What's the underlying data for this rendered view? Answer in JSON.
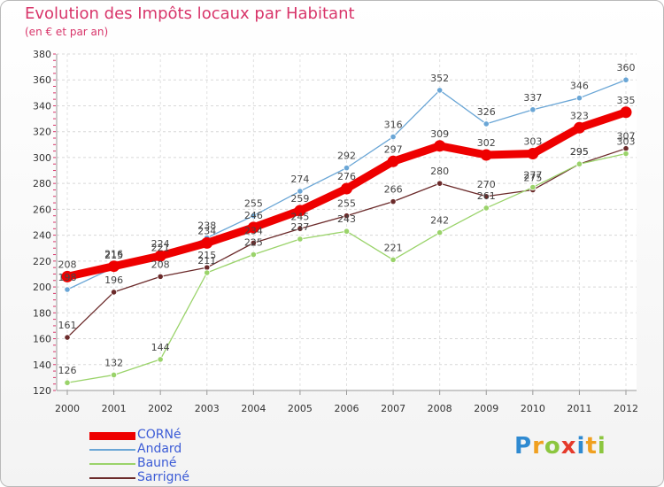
{
  "chart_data": {
    "type": "line",
    "title": "Evolution des Impôts locaux par Habitant",
    "subtitle": "(en € et par an)",
    "x": [
      "2000",
      "2001",
      "2002",
      "2003",
      "2004",
      "2005",
      "2006",
      "2007",
      "2008",
      "2009",
      "2010",
      "2011",
      "2012"
    ],
    "ylim": [
      120,
      380
    ],
    "yticks": [
      120,
      140,
      160,
      180,
      200,
      220,
      240,
      260,
      280,
      300,
      320,
      340,
      360,
      380
    ],
    "grid": true,
    "legend_position": "bottom-left",
    "series": [
      {
        "name": "CORNé",
        "color": "#ee0000",
        "values": [
          208,
          216,
          224,
          234,
          246,
          259,
          276,
          297,
          309,
          302,
          303,
          323,
          335
        ]
      },
      {
        "name": "Andard",
        "color": "#6aa6d6",
        "values": [
          198,
          215,
          221,
          238,
          255,
          274,
          292,
          316,
          352,
          326,
          337,
          346,
          360
        ]
      },
      {
        "name": "Bauné",
        "color": "#9ad36a",
        "values": [
          126,
          132,
          144,
          211,
          225,
          237,
          243,
          221,
          242,
          261,
          277,
          295,
          303
        ]
      },
      {
        "name": "Sarrigné",
        "color": "#6b2a2a",
        "values": [
          161,
          196,
          208,
          215,
          234,
          245,
          255,
          266,
          280,
          270,
          275,
          295,
          307
        ]
      }
    ]
  },
  "logo": {
    "letters": [
      "P",
      "r",
      "o",
      "x",
      "i",
      "t",
      "i"
    ],
    "colors": [
      "#2f8ad1",
      "#f0a020",
      "#8cc63f",
      "#e53a2b",
      "#2f8ad1",
      "#f0a020",
      "#8cc63f"
    ]
  }
}
